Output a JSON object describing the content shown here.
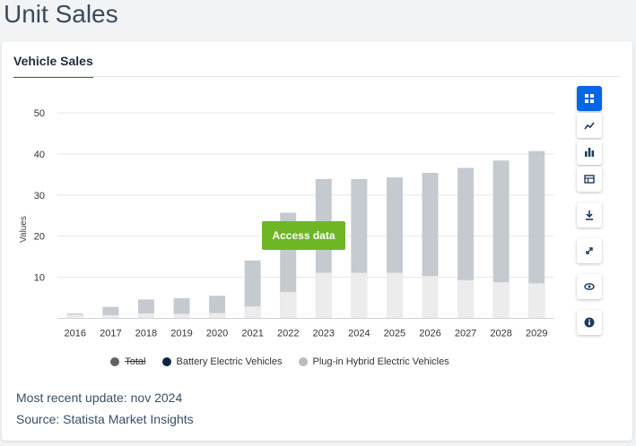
{
  "page": {
    "title": "Unit Sales"
  },
  "card": {
    "tab_label": "Vehicle Sales"
  },
  "access_button": {
    "label": "Access data"
  },
  "footer": {
    "update_text": "Most recent update: nov 2024",
    "source_text": "Source: Statista Market Insights"
  },
  "toolbar": {
    "items": [
      {
        "name": "dashboard-icon",
        "active": true
      },
      {
        "name": "line-chart-icon",
        "active": false
      },
      {
        "name": "bar-chart-icon",
        "active": false
      },
      {
        "name": "table-icon",
        "active": false
      },
      {
        "name": "download-icon",
        "active": false
      },
      {
        "name": "expand-icon",
        "active": false
      },
      {
        "name": "eye-icon",
        "active": false
      },
      {
        "name": "info-icon",
        "active": false
      }
    ]
  },
  "chart_data": {
    "type": "bar",
    "stacked": true,
    "categories": [
      "2016",
      "2017",
      "2018",
      "2019",
      "2020",
      "2021",
      "2022",
      "2023",
      "2024",
      "2025",
      "2026",
      "2027",
      "2028",
      "2029"
    ],
    "ylabel": "Values",
    "ylim": [
      0,
      50
    ],
    "yticks": [
      10,
      20,
      30,
      40,
      50
    ],
    "grid": true,
    "legend_position": "bottom",
    "series": [
      {
        "name": "Total",
        "hidden": true,
        "color": "#5f6368",
        "values": [
          1.2,
          2.8,
          4.6,
          4.9,
          5.5,
          14.1,
          25.7,
          33.9,
          33.9,
          34.3,
          35.4,
          36.6,
          38.4,
          40.7
        ]
      },
      {
        "name": "Battery Electric Vehicles",
        "color": "#0f2540",
        "values": [
          0.3,
          2.0,
          3.4,
          3.8,
          4.2,
          11.2,
          19.3,
          22.8,
          22.8,
          23.2,
          25.1,
          27.3,
          29.6,
          32.2
        ]
      },
      {
        "name": "Plug-in Hybrid Electric Vehicles",
        "color": "#bcbcbc",
        "values": [
          0.9,
          0.8,
          1.2,
          1.1,
          1.3,
          2.9,
          6.4,
          11.1,
          11.1,
          11.1,
          10.3,
          9.3,
          8.8,
          8.5
        ]
      }
    ],
    "colors": {
      "total_bar": "#c5cad0",
      "hybrid_bar": "#ececec",
      "grid": "#e6e6e6"
    }
  }
}
